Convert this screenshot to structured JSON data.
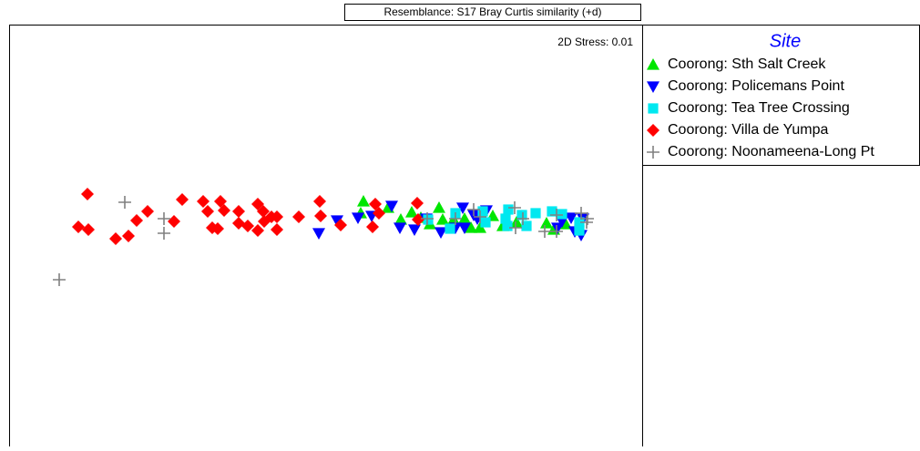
{
  "chart_data": {
    "type": "scatter",
    "title": "Resemblance: S17 Bray Curtis similarity (+d)",
    "annotation": "2D Stress: 0.01",
    "legend_title": "Site",
    "legend": "outside-right",
    "xlim": [
      -3.4,
      3.55
    ],
    "ylim": [
      -2.4,
      2.23
    ],
    "series": [
      {
        "name": "Coorong: Sth Salt Creek",
        "color": "#00e600",
        "marker": "triangle-up",
        "x": [
          0.49,
          0.46,
          0.76,
          0.9,
          1.02,
          1.12,
          1.32,
          1.22,
          1.48,
          1.6,
          1.67,
          1.77,
          1.91,
          2.02,
          2.17,
          2.5,
          2.58,
          2.71,
          1.36
        ],
        "y": [
          0.29,
          0.16,
          0.22,
          0.09,
          0.17,
          0.11,
          0.22,
          0.04,
          0.09,
          0.1,
          0,
          0,
          0.13,
          0.02,
          0.06,
          0.05,
          -0.02,
          0.04,
          0.09
        ]
      },
      {
        "name": "Coorong: Policemans Point",
        "color": "#0000ff",
        "marker": "triangle-down",
        "x": [
          0,
          0.2,
          0.43,
          0.58,
          0.8,
          0.89,
          1.05,
          1.18,
          1.34,
          1.58,
          1.6,
          1.74,
          1.84,
          1.7,
          1.5,
          2.67,
          2.77,
          2.81,
          2.88,
          2.9,
          2.62
        ],
        "y": [
          -0.06,
          0.08,
          0.11,
          0.13,
          0.24,
          0,
          -0.02,
          0.1,
          -0.05,
          0.22,
          0,
          0.1,
          0.19,
          0.14,
          0,
          0.07,
          0.11,
          -0.04,
          -0.08,
          0.1,
          0
        ]
      },
      {
        "name": "Coorong: Tea Tree Crossing",
        "color": "#00e8f0",
        "marker": "square",
        "x": [
          1.44,
          1.5,
          1.8,
          1.83,
          2.07,
          2.08,
          2.28,
          2.38,
          2.56,
          2.67,
          2.86,
          2.86,
          2.23,
          2.05,
          1.2
        ],
        "y": [
          -0.01,
          0.16,
          0.18,
          0.06,
          0.02,
          0.2,
          0.02,
          0.16,
          0.18,
          0.15,
          0.06,
          -0.03,
          0.14,
          0.1,
          0.09
        ]
      },
      {
        "name": "Coorong: Villa de Yumpa",
        "color": "#ff0000",
        "marker": "diamond",
        "x": [
          -2.54,
          -2.64,
          -2.53,
          -2.23,
          -2.09,
          -2.0,
          -1.88,
          -1.59,
          -1.5,
          -1.27,
          -1.22,
          -1.08,
          -1.04,
          -1.17,
          -1.11,
          -0.88,
          -0.88,
          -0.78,
          -0.67,
          -0.61,
          -0.67,
          -0.6,
          -0.52,
          -0.46,
          -0.46,
          -0.22,
          0.01,
          0.02,
          0.24,
          0.59,
          0.62,
          1.08,
          1.09,
          0.66
        ],
        "y": [
          0.37,
          0.01,
          -0.02,
          -0.12,
          -0.09,
          0.08,
          0.18,
          0.07,
          0.31,
          0.29,
          0.18,
          0.29,
          0.19,
          0,
          -0.01,
          0.18,
          0.05,
          0.02,
          0.26,
          0.18,
          -0.03,
          0.07,
          0.12,
          -0.02,
          0.12,
          0.12,
          0.29,
          0.13,
          0.03,
          0.01,
          0.26,
          0.27,
          0.09,
          0.16
        ]
      },
      {
        "name": "Coorong: Noonameena-Long Pt",
        "color": "#808080",
        "marker": "plus",
        "x": [
          -2.85,
          -2.13,
          -1.7,
          -1.7,
          1.19,
          1.5,
          1.7,
          1.77,
          2.15,
          2.16,
          2.24,
          2.48,
          2.61,
          2.61,
          2.88,
          2.95,
          2.94
        ],
        "y": [
          -0.57,
          0.28,
          0.1,
          -0.06,
          0.1,
          0.1,
          0.2,
          0.12,
          0.22,
          0,
          0.1,
          -0.04,
          -0.04,
          0.14,
          0.16,
          0.1,
          0.06
        ]
      }
    ]
  }
}
